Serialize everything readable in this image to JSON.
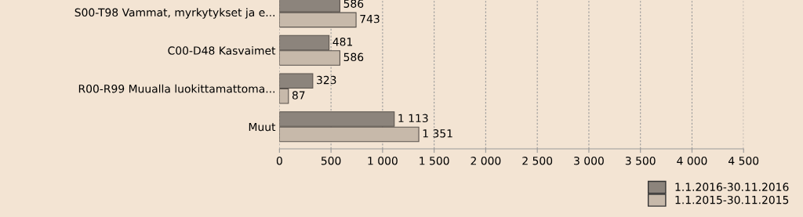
{
  "chart_data": {
    "type": "bar",
    "orientation": "horizontal",
    "categories": [
      "S00-T98 Vammat, myrkytykset ja e...",
      "C00-D48 Kasvaimet",
      "R00-R99 Muualla luokittamattoma...",
      "Muut"
    ],
    "series": [
      {
        "name": "1.1.2016-30.11.2016",
        "color": "#8c847c",
        "values": [
          586,
          481,
          323,
          1113
        ],
        "value_labels": [
          "586",
          "481",
          "323",
          "1 113"
        ]
      },
      {
        "name": "1.1.2015-30.11.2015",
        "color": "#c7b9aa",
        "values": [
          743,
          586,
          87,
          1351
        ],
        "value_labels": [
          "743",
          "586",
          "87",
          "1 351"
        ]
      }
    ],
    "xlim": [
      0,
      4500
    ],
    "xticks": [
      0,
      500,
      {
        "value": 1000,
        "label": "1 000"
      },
      {
        "value": 1500,
        "label": "1 500"
      },
      {
        "value": 2000,
        "label": "2 000"
      },
      {
        "value": 2500,
        "label": "2 500"
      },
      {
        "value": 3000,
        "label": "3 000"
      },
      {
        "value": 3500,
        "label": "3 500"
      },
      {
        "value": 4000,
        "label": "4 000"
      },
      {
        "value": 4500,
        "label": "4 500"
      }
    ],
    "grid": "x",
    "legend": "bottom right"
  }
}
